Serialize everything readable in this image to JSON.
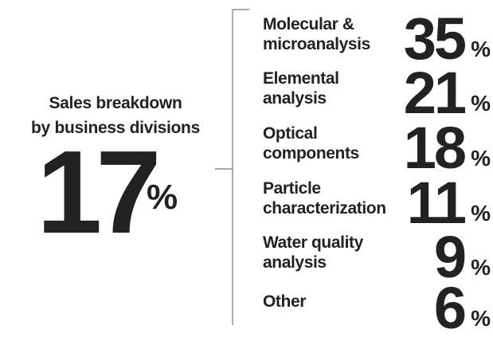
{
  "summary": {
    "title": [
      "Sales breakdown",
      "by business divisions"
    ],
    "value": 17,
    "unit": "%"
  },
  "divisions": [
    {
      "label": [
        "Molecular &",
        "microanalysis"
      ],
      "value": 35
    },
    {
      "label": [
        "Elemental",
        "analysis"
      ],
      "value": 21
    },
    {
      "label": [
        "Optical",
        "components"
      ],
      "value": 18
    },
    {
      "label": [
        "Particle",
        "characterization"
      ],
      "value": 11
    },
    {
      "label": [
        "Water quality",
        "analysis"
      ],
      "value": 9
    },
    {
      "label": [
        "Other"
      ],
      "value": 6
    }
  ]
}
